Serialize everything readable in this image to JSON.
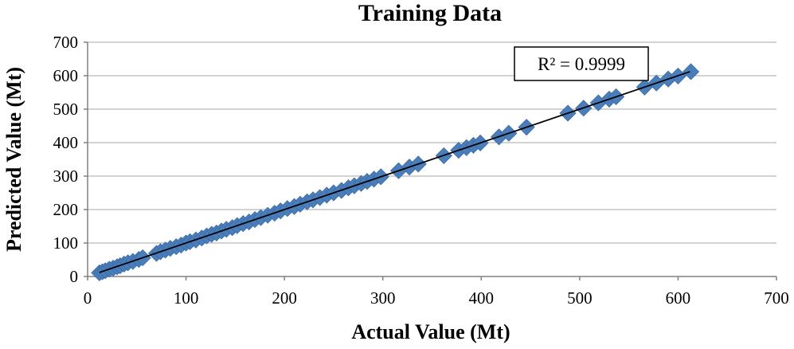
{
  "chart_data": {
    "type": "scatter",
    "title": "Training Data",
    "xlabel": "Actual Value (Mt)",
    "ylabel": "Predicted Value (Mt)",
    "xlim": [
      0,
      700
    ],
    "ylim": [
      0,
      700
    ],
    "xticks": [
      0,
      100,
      200,
      300,
      400,
      500,
      600,
      700
    ],
    "yticks": [
      0,
      100,
      200,
      300,
      400,
      500,
      600,
      700
    ],
    "grid": "horizontal",
    "marker": "diamond",
    "colors": {
      "marker": "#4a7ebb",
      "trendline": "#000000",
      "grid": "#a6a6a6"
    },
    "annotation": "R² = 0.9999",
    "trendline": {
      "x": [
        12,
        612
      ],
      "y": [
        12,
        612
      ]
    },
    "series": [
      {
        "x": [
          12,
          15,
          18,
          22,
          26,
          30,
          33,
          37,
          41,
          46,
          52,
          56,
          70,
          74,
          79,
          84,
          90,
          95,
          100,
          104,
          110,
          116,
          121,
          126,
          131,
          136,
          141,
          147,
          152,
          158,
          164,
          170,
          176,
          183,
          190,
          196,
          203,
          210,
          216,
          223,
          229,
          236,
          243,
          250,
          258,
          265,
          271,
          278,
          284,
          291,
          298,
          316,
          327,
          336,
          362,
          377,
          385,
          392,
          399,
          418,
          428,
          446,
          488,
          504,
          519,
          530,
          537,
          566,
          578,
          590,
          600,
          613
        ],
        "y": [
          11,
          14,
          17,
          22,
          25,
          29,
          32,
          37,
          41,
          45,
          51,
          56,
          69,
          74,
          79,
          84,
          89,
          94,
          100,
          104,
          109,
          115,
          121,
          126,
          130,
          136,
          141,
          146,
          152,
          158,
          163,
          170,
          176,
          183,
          189,
          196,
          203,
          209,
          216,
          223,
          229,
          236,
          243,
          250,
          257,
          265,
          271,
          278,
          284,
          291,
          298,
          316,
          327,
          336,
          361,
          377,
          385,
          392,
          399,
          417,
          428,
          446,
          488,
          503,
          519,
          530,
          537,
          566,
          578,
          590,
          599,
          612
        ]
      }
    ]
  }
}
